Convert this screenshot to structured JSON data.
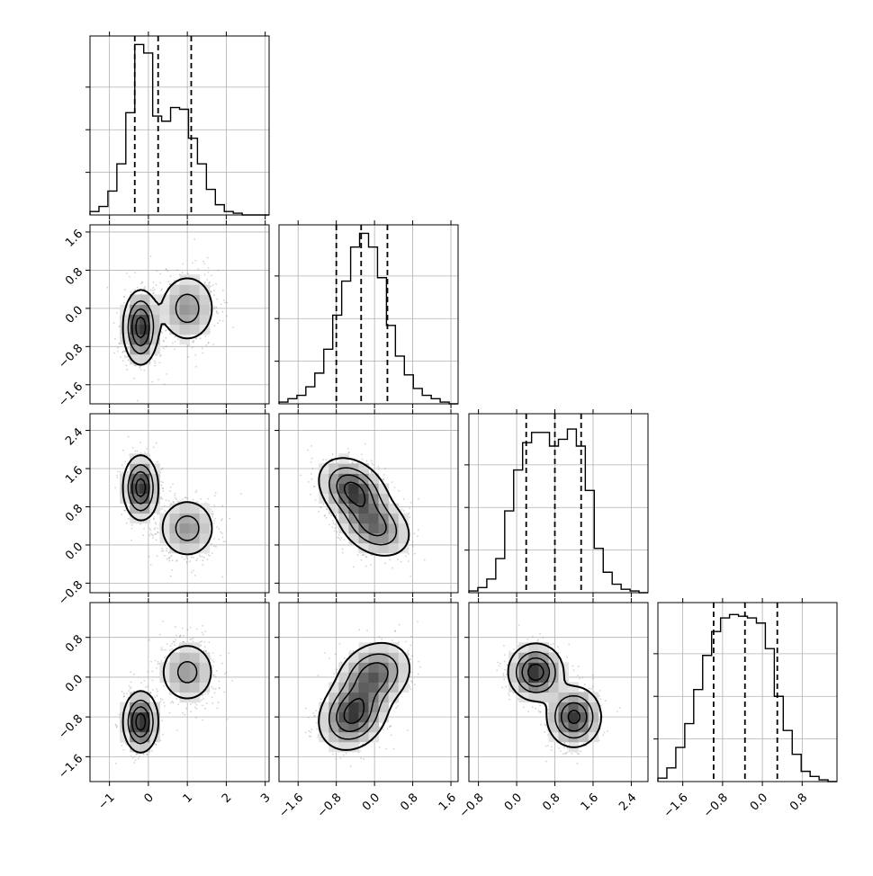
{
  "chart_data": {
    "type": "corner",
    "grid": true,
    "colors": {
      "line": "#000000",
      "grid": "#b0b0b0",
      "points": "#808080"
    },
    "parameters": 4,
    "ranges": [
      [
        -1.5,
        3.1
      ],
      [
        -2.0,
        1.75
      ],
      [
        -1.0,
        2.75
      ],
      [
        -2.1,
        1.5
      ]
    ],
    "ticks": [
      [
        -1,
        0,
        1,
        2,
        3
      ],
      [
        -1.6,
        -0.8,
        0.0,
        0.8,
        1.6
      ],
      [
        -0.8,
        0.0,
        0.8,
        1.6,
        2.4
      ],
      [
        -1.6,
        -0.8,
        0.0,
        0.8
      ]
    ],
    "tick_labels": [
      [
        "−1",
        "0",
        "1",
        "2",
        "3"
      ],
      [
        "−1.6",
        "−0.8",
        "0.0",
        "0.8",
        "1.6"
      ],
      [
        "−0.8",
        "0.0",
        "0.8",
        "1.6",
        "2.4"
      ],
      [
        "−1.6",
        "−0.8",
        "0.0",
        "0.8"
      ]
    ],
    "quantiles": [
      [
        -0.35,
        0.25,
        1.1
      ],
      [
        -0.8,
        -0.28,
        0.27
      ],
      [
        0.2,
        0.8,
        1.35
      ],
      [
        -0.98,
        -0.35,
        0.3
      ]
    ],
    "histograms": [
      {
        "edges_start": -1.5,
        "bin_width": 0.23,
        "counts": [
          2,
          5,
          14,
          30,
          60,
          100,
          95,
          58,
          55,
          63,
          62,
          45,
          30,
          15,
          6,
          2,
          1,
          0,
          0,
          0
        ]
      },
      {
        "edges_start": -2.0,
        "bin_width": 0.1875,
        "counts": [
          1,
          3,
          5,
          10,
          18,
          32,
          52,
          72,
          92,
          100,
          92,
          74,
          46,
          28,
          17,
          9,
          5,
          3,
          1,
          0
        ]
      },
      {
        "edges_start": -1.0,
        "bin_width": 0.1875,
        "counts": [
          1,
          3,
          8,
          20,
          48,
          72,
          88,
          94,
          94,
          86,
          90,
          96,
          86,
          60,
          26,
          12,
          5,
          2,
          1,
          0
        ]
      },
      {
        "edges_start": -2.1,
        "bin_width": 0.18,
        "counts": [
          2,
          8,
          20,
          34,
          54,
          74,
          88,
          96,
          98,
          97,
          96,
          93,
          78,
          50,
          30,
          16,
          6,
          3,
          1,
          0
        ]
      }
    ],
    "joint_panels": [
      {
        "row": 1,
        "col": 0,
        "modes": [
          {
            "mean": [
              -0.2,
              -0.4
            ],
            "sd": [
              0.22,
              0.38
            ],
            "rho": 0.0,
            "w": 0.55
          },
          {
            "mean": [
              1.0,
              0.0
            ],
            "sd": [
              0.38,
              0.38
            ],
            "rho": 0.0,
            "w": 0.45
          }
        ]
      },
      {
        "row": 2,
        "col": 0,
        "modes": [
          {
            "mean": [
              -0.2,
              1.2
            ],
            "sd": [
              0.22,
              0.33
            ],
            "rho": 0.0,
            "w": 0.55
          },
          {
            "mean": [
              1.0,
              0.35
            ],
            "sd": [
              0.38,
              0.33
            ],
            "rho": 0.0,
            "w": 0.45
          }
        ]
      },
      {
        "row": 2,
        "col": 1,
        "modes": [
          {
            "mean": [
              -0.45,
              1.15
            ],
            "sd": [
              0.35,
              0.33
            ],
            "rho": -0.3,
            "w": 0.55
          },
          {
            "mean": [
              0.0,
              0.4
            ],
            "sd": [
              0.38,
              0.33
            ],
            "rho": -0.3,
            "w": 0.45
          }
        ]
      },
      {
        "row": 3,
        "col": 0,
        "modes": [
          {
            "mean": [
              -0.2,
              -0.9
            ],
            "sd": [
              0.22,
              0.3
            ],
            "rho": 0.0,
            "w": 0.55
          },
          {
            "mean": [
              1.0,
              0.1
            ],
            "sd": [
              0.38,
              0.33
            ],
            "rho": 0.0,
            "w": 0.45
          }
        ]
      },
      {
        "row": 3,
        "col": 1,
        "modes": [
          {
            "mean": [
              -0.45,
              -0.75
            ],
            "sd": [
              0.35,
              0.35
            ],
            "rho": 0.2,
            "w": 0.55
          },
          {
            "mean": [
              0.0,
              0.05
            ],
            "sd": [
              0.38,
              0.33
            ],
            "rho": 0.2,
            "w": 0.45
          }
        ]
      },
      {
        "row": 3,
        "col": 2,
        "modes": [
          {
            "mean": [
              0.4,
              0.1
            ],
            "sd": [
              0.28,
              0.28
            ],
            "rho": 0.0,
            "w": 0.5
          },
          {
            "mean": [
              1.2,
              -0.8
            ],
            "sd": [
              0.28,
              0.3
            ],
            "rho": 0.0,
            "w": 0.5
          }
        ]
      }
    ]
  }
}
